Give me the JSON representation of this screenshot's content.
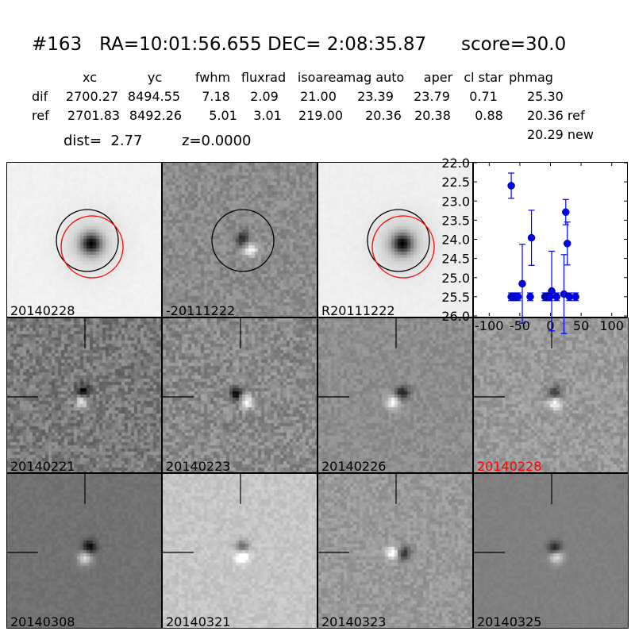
{
  "title": "#163   RA=10:01:56.655 DEC= 2:08:35.87      score=30.0",
  "table": {
    "headers": [
      "xc",
      "yc",
      "fwhm",
      "fluxrad",
      "isoarea",
      "mag auto",
      "aper",
      "cl star",
      "phmag"
    ],
    "rows": [
      {
        "label": "dif",
        "values": [
          "2700.27",
          "8494.55",
          "7.18",
          "2.09",
          "21.00",
          "23.39",
          "23.79",
          "0.71",
          "25.30"
        ]
      },
      {
        "label": "ref",
        "values": [
          "2701.83",
          "8492.26",
          "5.01",
          "3.01",
          "219.00",
          "20.36",
          "20.38",
          "0.88",
          "20.36 ref"
        ]
      }
    ],
    "phmag_new": "20.29 new",
    "dist": "dist=  2.77",
    "z": "z=0.0000"
  },
  "panels": [
    {
      "label": "20140228",
      "label_color": "#000000",
      "background": "#f2f2f2"
    },
    {
      "label": "-20111222",
      "label_color": "#000000",
      "background": "#8c8c8c"
    },
    {
      "label": "R20111222",
      "label_color": "#000000",
      "background": "#f0f0f0"
    },
    {
      "label": "20140221",
      "label_color": "#000000",
      "background": "#7a7a7a"
    },
    {
      "label": "20140223",
      "label_color": "#000000",
      "background": "#8a8a8a"
    },
    {
      "label": "20140226",
      "label_color": "#000000",
      "background": "#8e8e8e"
    },
    {
      "label": "20140228",
      "label_color": "#ff0000",
      "background": "#9a9a9a"
    },
    {
      "label": "20140308",
      "label_color": "#000000",
      "background": "#727272"
    },
    {
      "label": "20140321",
      "label_color": "#000000",
      "background": "#c6c6c6"
    },
    {
      "label": "20140323",
      "label_color": "#000000",
      "background": "#9a9a9a"
    },
    {
      "label": "20140325",
      "label_color": "#000000",
      "background": "#808080"
    }
  ],
  "chart_data": {
    "type": "scatter",
    "xlim": [
      -125,
      125
    ],
    "ylim": [
      26.0,
      22.0
    ],
    "y_inverted": true,
    "xticks": [
      -100,
      -50,
      0,
      50,
      100
    ],
    "xtick_labels": [
      "-100",
      "-50",
      "0",
      "50",
      "100"
    ],
    "yticks": [
      22.0,
      22.5,
      23.0,
      23.5,
      24.0,
      24.5,
      25.0,
      25.5,
      26.0
    ],
    "ytick_labels": [
      "22.0",
      "22.5",
      "23.0",
      "23.5",
      "24.0",
      "24.5",
      "25.0",
      "25.5",
      "26.0"
    ],
    "marker_color": "#0000ff",
    "grid": false,
    "points": [
      {
        "x": -64,
        "y": 22.6,
        "err": 0.33
      },
      {
        "x": -46,
        "y": 25.16,
        "err": 1.03
      },
      {
        "x": -31,
        "y": 23.96,
        "err": 0.72
      },
      {
        "x": 2,
        "y": 25.35,
        "err": 1.04
      },
      {
        "x": 22,
        "y": 25.43,
        "err": 1.03
      },
      {
        "x": 25,
        "y": 23.29,
        "err": 0.33
      },
      {
        "x": 27.5,
        "y": 24.11,
        "err": 0.56
      },
      {
        "x": -64,
        "y": 25.5,
        "err": 0.1
      },
      {
        "x": -60,
        "y": 25.5,
        "err": 0.1
      },
      {
        "x": -56,
        "y": 25.5,
        "err": 0.1
      },
      {
        "x": -53,
        "y": 25.5,
        "err": 0.1
      },
      {
        "x": -33,
        "y": 25.5,
        "err": 0.1
      },
      {
        "x": -9,
        "y": 25.5,
        "err": 0.1
      },
      {
        "x": -6,
        "y": 25.5,
        "err": 0.1
      },
      {
        "x": -3,
        "y": 25.5,
        "err": 0.1
      },
      {
        "x": -1,
        "y": 25.5,
        "err": 0.1
      },
      {
        "x": 10,
        "y": 25.5,
        "err": 0.1
      },
      {
        "x": 31,
        "y": 25.5,
        "err": 0.1
      },
      {
        "x": 41,
        "y": 25.5,
        "err": 0.1
      }
    ]
  }
}
